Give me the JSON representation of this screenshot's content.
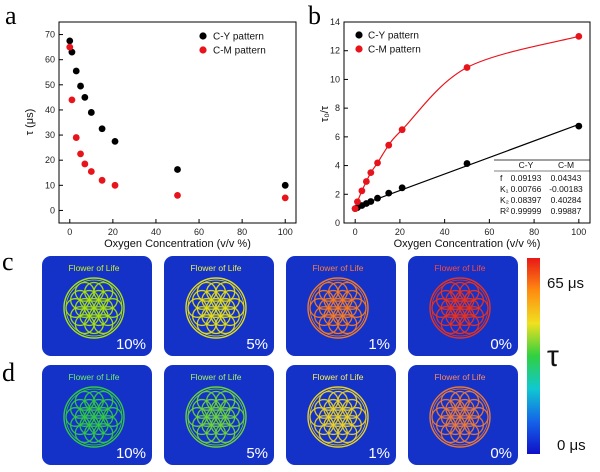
{
  "panel_labels": [
    "a",
    "b",
    "c",
    "d"
  ],
  "chart_data": [
    {
      "type": "scatter",
      "xlabel": "Oxygen Concentration (v/v %)",
      "ylabel": "τ (μs)",
      "xlim": [
        -5,
        105
      ],
      "ylim": [
        -5,
        75
      ],
      "xticks": [
        "0",
        "20",
        "40",
        "60",
        "80",
        "100"
      ],
      "yticks": [
        "0",
        "10",
        "20",
        "30",
        "40",
        "50",
        "60",
        "70"
      ],
      "legend_position": "top-right",
      "series": [
        {
          "name": "C-Y pattern",
          "color": "#000000",
          "x": [
            0,
            1,
            3,
            5,
            7,
            10,
            15,
            21,
            50,
            100
          ],
          "y": [
            67.5,
            63,
            55.5,
            49.5,
            45,
            39,
            32.5,
            27.5,
            16.3,
            10
          ]
        },
        {
          "name": "C-M pattern",
          "color": "#e8141b",
          "x": [
            0,
            1,
            3,
            5,
            7,
            10,
            15,
            21,
            50,
            100
          ],
          "y": [
            65,
            44,
            29,
            22.5,
            18.5,
            15.5,
            12,
            10,
            6,
            5
          ]
        }
      ]
    },
    {
      "type": "scatter",
      "xlabel": "Oxygen Concentration (v/v %)",
      "ylabel": "τ₀/τ",
      "xlim": [
        -5,
        105
      ],
      "ylim": [
        0,
        14
      ],
      "xticks": [
        "0",
        "20",
        "40",
        "60",
        "80",
        "100"
      ],
      "yticks": [
        "0",
        "2",
        "4",
        "6",
        "8",
        "10",
        "12",
        "14"
      ],
      "legend_position": "top-left",
      "series": [
        {
          "name": "C-Y pattern",
          "color": "#000000",
          "x": [
            0,
            1,
            3,
            5,
            7,
            10,
            15,
            21,
            50,
            100
          ],
          "y": [
            1.0,
            1.07,
            1.22,
            1.36,
            1.5,
            1.73,
            2.08,
            2.45,
            4.14,
            6.75
          ],
          "fit": "linear"
        },
        {
          "name": "C-M pattern",
          "color": "#e8141b",
          "x": [
            0,
            1,
            3,
            5,
            7,
            10,
            15,
            21,
            50,
            100
          ],
          "y": [
            1.0,
            1.48,
            2.24,
            2.89,
            3.51,
            4.19,
            5.42,
            6.5,
            10.83,
            13.0
          ],
          "fit": "curve"
        }
      ],
      "table": {
        "header": [
          "",
          "C-Y",
          "C-M"
        ],
        "rows": [
          [
            "f",
            "0.09193",
            "0.04343"
          ],
          [
            "K₁",
            "0.00766",
            "-0.00183"
          ],
          [
            "K₂",
            "0.08397",
            "0.40284"
          ],
          [
            "R²",
            "0.99999",
            "0.99887"
          ]
        ]
      }
    }
  ],
  "images": {
    "title": "Flower of Life",
    "row_c": {
      "percents": [
        "10%",
        "5%",
        "1%",
        "0%"
      ],
      "pattern_colors": [
        "#a8e010",
        "#e0dc1a",
        "#f07a28",
        "#e8321e"
      ],
      "title_colors": [
        "#c8f020",
        "#f0f040",
        "#ff7e3a",
        "#ff4a3a"
      ]
    },
    "row_d": {
      "percents": [
        "10%",
        "5%",
        "1%",
        "0%"
      ],
      "pattern_colors": [
        "#32c842",
        "#6ad23a",
        "#e6d028",
        "#e8783a"
      ],
      "title_colors": [
        "#70f060",
        "#a8f060",
        "#fff050",
        "#ff8a5a"
      ]
    },
    "panel_color": "#1432c8"
  },
  "colorbar": {
    "max_label": "65 μs",
    "min_label": "0 μs",
    "symbol": "τ",
    "colors": [
      "#e81818",
      "#ff8c10",
      "#f0e020",
      "#30d040",
      "#10c8d0",
      "#1464e8",
      "#1010c8"
    ]
  }
}
